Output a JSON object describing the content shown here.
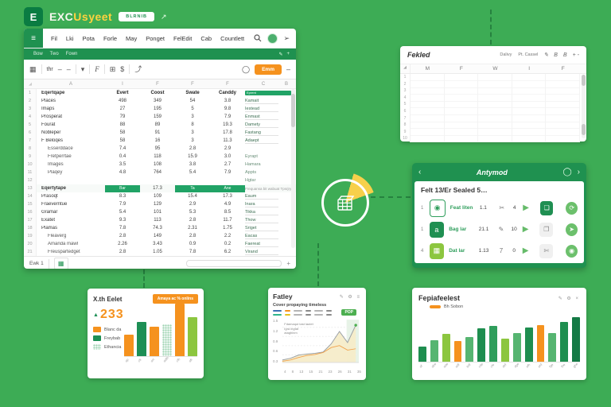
{
  "colors": {
    "background": "#3dac55",
    "brand_green": "#1f9150",
    "accent_orange": "#f5921e",
    "highlight_green": "#21a366",
    "pie_yellow": "#f7d04b"
  },
  "window": {
    "titlebar": {
      "logo": "E",
      "title_main": "EXC",
      "title_accent": "Usyeet",
      "badge_label": "BLRNIB",
      "link_icon": "external-link-icon"
    },
    "menubar": {
      "items": [
        "Fil",
        "Lki",
        "Pota",
        "Forle",
        "May",
        "Ponget",
        "FelEdit",
        "Cab",
        "Countlett"
      ]
    },
    "ribbon": {
      "items": [
        "Bow",
        "Two",
        "Fown"
      ],
      "right_icons": [
        "pencil-icon",
        "plus-icon"
      ]
    },
    "toolbar": {
      "font_name": "thr",
      "share_button": "Emm"
    },
    "sheet": {
      "col_headers": [
        "A",
        "I",
        "F",
        "F",
        "F",
        "C",
        "B"
      ],
      "header_row": {
        "n": "1",
        "label": "Eqertqape",
        "cols": [
          "Evert",
          "Coost",
          "Swate",
          "Canddy"
        ],
        "r_label": "Eprent"
      },
      "rows": [
        {
          "n": "2",
          "label": "Places",
          "ind": false,
          "v": [
            "498",
            "349",
            "54",
            "3.8"
          ],
          "r": "Kamait",
          "ru": true
        },
        {
          "n": "3",
          "label": "Imaps",
          "ind": false,
          "v": [
            "27",
            "195",
            "5",
            "9.8"
          ],
          "r": "Iestead",
          "ru": true
        },
        {
          "n": "4",
          "label": "Prosperat",
          "ind": false,
          "v": [
            "79",
            "159",
            "3",
            "7.9"
          ],
          "r": "Enmast",
          "ru": true
        },
        {
          "n": "5",
          "label": "Fourat",
          "ind": false,
          "v": [
            "88",
            "89",
            "8",
            "19.3"
          ],
          "r": "Damety",
          "ru": true
        },
        {
          "n": "6",
          "label": "Nobleper",
          "ind": false,
          "v": [
            "58",
            "91",
            "3",
            "17.8"
          ],
          "r": "Fastang",
          "ru": true
        },
        {
          "n": "7",
          "label": "F Beloqes",
          "ind": false,
          "v": [
            "58",
            "16",
            "3",
            "11.3"
          ],
          "r": "Adaept",
          "ru": true
        },
        {
          "n": "8",
          "label": "Esserddace",
          "ind": true,
          "v": [
            "7.4",
            "95",
            "2.8",
            "2.9"
          ],
          "r": "",
          "ru": false
        },
        {
          "n": "9",
          "label": "Fretperrtae",
          "ind": true,
          "v": [
            "0.4",
            "118",
            "15.9",
            "3.0"
          ],
          "r": "Eyrapt",
          "ru": false
        },
        {
          "n": "10",
          "label": "Images",
          "ind": true,
          "v": [
            "3.5",
            "108",
            "3.8",
            "2.7"
          ],
          "r": "Hamara",
          "ru": false
        },
        {
          "n": "11",
          "label": "Plaqey",
          "ind": true,
          "v": [
            "4.8",
            "764",
            "5.4",
            "7.9"
          ],
          "r": "Appts",
          "ru": false
        },
        {
          "n": "12",
          "label": "",
          "ind": false,
          "v": [
            "",
            "",
            "",
            ""
          ],
          "r": "Hgtar",
          "ru": false
        },
        {
          "type": "section",
          "n": "13",
          "label": "Eqertytape",
          "cells": [
            "Bar",
            "17.3",
            "Ta",
            "Ane"
          ],
          "note": "Frequansa bit wabuat Tpsrjrywt Fraat Guast"
        },
        {
          "n": "14",
          "label": "Prasoqt",
          "ind": false,
          "v": [
            "8.3",
            "109",
            "15.4",
            "17.3"
          ],
          "r": "Eaum",
          "ru": true
        },
        {
          "n": "15",
          "label": "Fraeverntue",
          "ind": false,
          "v": [
            "7.9",
            "129",
            "2.9",
            "4.9"
          ],
          "r": "Inara",
          "ru": true
        },
        {
          "n": "16",
          "label": "Gramar",
          "ind": false,
          "v": [
            "5.4",
            "101",
            "5.3",
            "8.5"
          ],
          "r": "Tikka",
          "ru": true
        },
        {
          "n": "17",
          "label": "Exatet",
          "ind": false,
          "v": [
            "9.3",
            "113",
            "2.8",
            "11.7"
          ],
          "r": "Thow",
          "ru": true
        },
        {
          "n": "18",
          "label": "Plamas",
          "ind": false,
          "v": [
            "7.8",
            "74.3",
            "2.31",
            "1.75"
          ],
          "r": "Sriget",
          "ru": true
        },
        {
          "n": "19",
          "label": "Fleaverg",
          "ind": true,
          "v": [
            "2.8",
            "149",
            "2.8",
            "2.2"
          ],
          "r": "Eacas",
          "ru": true
        },
        {
          "n": "20",
          "label": "Amanda mawl",
          "ind": true,
          "v": [
            "2.26",
            "3.43",
            "0.9",
            "0.2"
          ],
          "r": "Faereat",
          "ru": true
        },
        {
          "n": "21",
          "label": "Freuspartedget",
          "ind": true,
          "v": [
            "2.8",
            "1.05",
            "7.8",
            "6.2"
          ],
          "r": "Virand",
          "ru": true
        }
      ],
      "tab_label": "Ewk 1"
    }
  },
  "mini_sheet": {
    "title": "Fekled",
    "action_left": "Dalivy",
    "action_right": "Pt. Cassel",
    "tool_icons": [
      "pencil-icon",
      "bold-icon",
      "bold-icon",
      "plus-minus-icon"
    ],
    "col_headers": [
      "M",
      "F",
      "W",
      "I",
      "F"
    ],
    "row_numbers": [
      "1",
      "2",
      "3",
      "4",
      "5",
      "6",
      "7",
      "8",
      "9",
      "10"
    ]
  },
  "task_panel": {
    "title": "Antymod",
    "back_icon": "back-arrow-icon",
    "forward_icon": "forward-arrow-icon",
    "circle_icon": "record-icon",
    "heading": "Felt 13/Er Sealed 5…",
    "rows": [
      {
        "index": "1",
        "tile_style": "outline",
        "tile_icon": "chat-icon",
        "label": "Feat liten",
        "value": "1.1",
        "mid_icon": "scissors-icon",
        "mid_text": "",
        "count": "4",
        "status_style": "filled",
        "status_icon": "check-icon",
        "action_icon": "sync-icon"
      },
      {
        "index": "1",
        "tile_style": "dark",
        "tile_icon": "text-icon",
        "label": "Bag lar",
        "value": "21.1",
        "mid_icon": "pencil-icon",
        "mid_text": "",
        "count": "10",
        "status_style": "gray",
        "status_icon": "copy-icon",
        "action_icon": "send-icon"
      },
      {
        "index": "4",
        "tile_style": "light",
        "tile_icon": "grid-icon",
        "label": "Dat lar",
        "value": "1.13",
        "mid_icon": "",
        "mid_text": "7",
        "count": "0",
        "status_style": "gray",
        "status_icon": "cut-icon",
        "action_icon": "record-icon"
      }
    ]
  },
  "chart_data": [
    {
      "type": "bar",
      "title": "X.th Eelet",
      "banner": "Amaya ac % onlins",
      "stat_value": "233",
      "legend": [
        {
          "label": "Blanc da",
          "color": "#f5921e",
          "dotted": false
        },
        {
          "label": "Freybab",
          "color": "#1d8f55",
          "dotted": false
        },
        {
          "label": "Ethancia",
          "color": "#cde9d8",
          "dotted": true
        }
      ],
      "categories": [
        "ap",
        "cft",
        "art",
        "adfh",
        "cfh",
        "aft"
      ],
      "values": [
        38,
        60,
        52,
        55,
        92,
        68
      ],
      "colors": [
        "#f5921e",
        "#1d8f55",
        "#f5921e",
        "dotted",
        "#f5921e",
        "#8cc63f"
      ],
      "ylim": [
        0,
        100
      ]
    },
    {
      "type": "area",
      "title": "Fatley",
      "toolbar_icons": [
        "pencil-icon",
        "gear-icon",
        "menu-icon"
      ],
      "subtitle": "Cover propaying timeless",
      "badge": "POP",
      "annotation": [
        "Fdamaqut tast lautet",
        "Igra ingtat",
        "ataghinm"
      ],
      "yticks": [
        "1.5",
        "1.2",
        "0.9",
        "0.6",
        "0.3"
      ],
      "xticks": [
        "4",
        "8",
        "13",
        "15",
        "21",
        "23",
        "26",
        "31",
        "35"
      ],
      "ylim": [
        0,
        1.6
      ],
      "series": [
        {
          "name": "total",
          "color": "#9aa0a6",
          "fill": "#f6ecc9",
          "values": [
            0.1,
            0.17,
            0.3,
            0.34,
            0.37,
            0.42,
            0.75,
            1.25,
            0.8,
            1.5
          ]
        },
        {
          "name": "baseline",
          "color": "#f0a04a",
          "values": [
            0.05,
            0.1,
            0.2,
            0.28,
            0.32,
            0.4,
            0.6,
            0.68,
            0.5,
            0.55
          ]
        }
      ],
      "minitable_rows": [
        [
          "#3b6fb5",
          "#f5921e",
          "#b5b5b5",
          "#8a8a8a",
          "#b5b5b5",
          "#8a8a8a"
        ],
        [
          "#2fb58c",
          "#e8c11c",
          "#b5b5b5",
          "#8a8a8a",
          "#b5b5b5",
          "#8a8a8a"
        ]
      ]
    },
    {
      "type": "bar",
      "title": "Fepiafeelest",
      "toolbar_icons": [
        "pencil-icon",
        "gear-icon",
        "close-icon"
      ],
      "legend": [
        {
          "label": "Bh Sobon",
          "color": "#f5921e",
          "dotted": false
        }
      ],
      "categories": [
        "af",
        "abe",
        "ade",
        "adf",
        "bdf",
        "cde",
        "cfe",
        "def",
        "dge",
        "efh",
        "ehf",
        "fge",
        "fhe",
        "ghe"
      ],
      "values": [
        30,
        44,
        56,
        42,
        50,
        68,
        72,
        46,
        58,
        70,
        74,
        58,
        80,
        90
      ],
      "colors": [
        "#1e8e4f",
        "#56b571",
        "#8cc63f",
        "#f5921e",
        "#56b571",
        "#1e8e4f",
        "#2f9e5c",
        "#8cc63f",
        "#56b571",
        "#1e8e4f",
        "#f5921e",
        "#56b571",
        "#1e8e4f",
        "#147a45"
      ],
      "ylim": [
        0,
        100
      ]
    }
  ]
}
